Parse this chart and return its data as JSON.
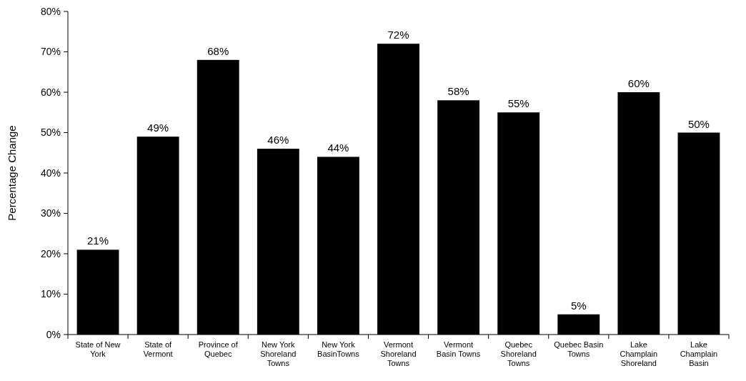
{
  "chart_data": {
    "type": "bar",
    "ylabel": "Percentage Change",
    "categories": [
      "State of New York",
      "State of Vermont",
      "Province of Quebec",
      "New York Shoreland Towns",
      "New York BasinTowns",
      "Vermont Shoreland Towns",
      "Vermont Basin Towns",
      "Quebec Shoreland Towns",
      "Quebec Basin Towns",
      "Lake Champlain Shoreland",
      "Lake Champlain Basin"
    ],
    "values": [
      21,
      49,
      68,
      46,
      44,
      72,
      58,
      55,
      5,
      60,
      50
    ],
    "value_labels": [
      "21%",
      "49%",
      "68%",
      "46%",
      "44%",
      "72%",
      "58%",
      "55%",
      "5%",
      "60%",
      "50%"
    ],
    "color": "#000000",
    "ylim": [
      0,
      80
    ],
    "yticks": [
      {
        "value": 0,
        "label": "0%"
      },
      {
        "value": 10,
        "label": "10%"
      },
      {
        "value": 20,
        "label": "20%"
      },
      {
        "value": 30,
        "label": "30%"
      },
      {
        "value": 40,
        "label": "40%"
      },
      {
        "value": 50,
        "label": "50%"
      },
      {
        "value": 60,
        "label": "60%"
      },
      {
        "value": 70,
        "label": "70%"
      },
      {
        "value": 80,
        "label": "80%"
      }
    ],
    "grid": false
  }
}
